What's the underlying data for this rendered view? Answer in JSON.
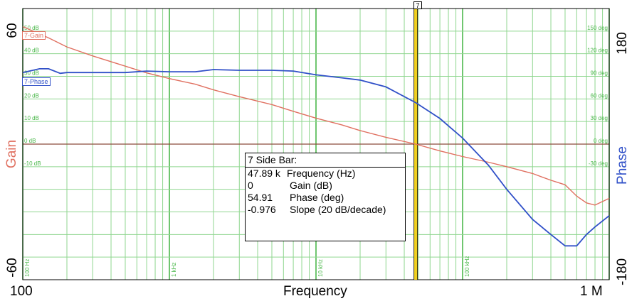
{
  "chart_data": {
    "type": "line",
    "xlabel": "Frequency",
    "x_scale": "log",
    "xlim": [
      100,
      1000000
    ],
    "x_tick_labels_bottom": {
      "left": "100",
      "right": "1 M"
    },
    "x_inner_labels": [
      "100 Hz",
      "1 kHz",
      "10 kHz",
      "100 kHz"
    ],
    "y_left": {
      "label": "Gain",
      "range_labels": [
        "60",
        "-60"
      ],
      "ylim": [
        -60,
        60
      ],
      "ticks": [
        "50 dB",
        "40 dB",
        "30 dB",
        "20 dB",
        "10 dB",
        "0 dB",
        "-10 dB"
      ]
    },
    "y_right": {
      "label": "Phase",
      "range_labels": [
        "180",
        "-180"
      ],
      "ylim": [
        -180,
        180
      ],
      "ticks": [
        "150 deg",
        "120 deg",
        "90 deg",
        "60 deg",
        "30 deg",
        "0 deg",
        "-30 deg"
      ]
    },
    "series": [
      {
        "name": "7-Gain",
        "axis": "left",
        "color": "#e07060",
        "x": [
          100,
          150,
          200,
          300,
          500,
          700,
          1000,
          1500,
          2000,
          3000,
          5000,
          7000,
          10000,
          15000,
          20000,
          30000,
          47890,
          70000,
          100000,
          150000,
          200000,
          300000,
          400000,
          500000,
          600000,
          700000,
          800000,
          1000000
        ],
        "y": [
          52,
          47,
          43,
          39,
          34.5,
          31.5,
          29,
          26.5,
          24,
          21,
          17.5,
          14.5,
          11.5,
          8.5,
          6,
          3,
          0,
          -3,
          -5.5,
          -8,
          -10,
          -13,
          -16,
          -18,
          -23,
          -26,
          -27,
          -24
        ]
      },
      {
        "name": "7-Phase",
        "axis": "right",
        "color": "#3050c8",
        "x": [
          100,
          130,
          150,
          180,
          200,
          300,
          500,
          700,
          1000,
          1500,
          2000,
          3000,
          5000,
          7000,
          10000,
          15000,
          20000,
          30000,
          47890,
          70000,
          100000,
          150000,
          200000,
          300000,
          400000,
          500000,
          600000,
          700000,
          800000,
          1000000
        ],
        "y": [
          95,
          100,
          100,
          94,
          95,
          95,
          95,
          97,
          96,
          96,
          99,
          98,
          98,
          97,
          92,
          88,
          85,
          76,
          55,
          34,
          8,
          -28,
          -60,
          -100,
          -120,
          -135,
          -135,
          -120,
          -110,
          -95
        ]
      }
    ],
    "cursor": {
      "label": "7",
      "x": 47890,
      "color": "#f0d020"
    }
  },
  "info_box": {
    "title": "7 Side Bar:",
    "rows": [
      {
        "value": "47.89 k",
        "name": "Frequency (Hz)"
      },
      {
        "value": "0",
        "name": "Gain (dB)"
      },
      {
        "value": "54.91",
        "name": "Phase (deg)"
      },
      {
        "value": "-0.976",
        "name": "Slope (20 dB/decade)"
      }
    ]
  }
}
